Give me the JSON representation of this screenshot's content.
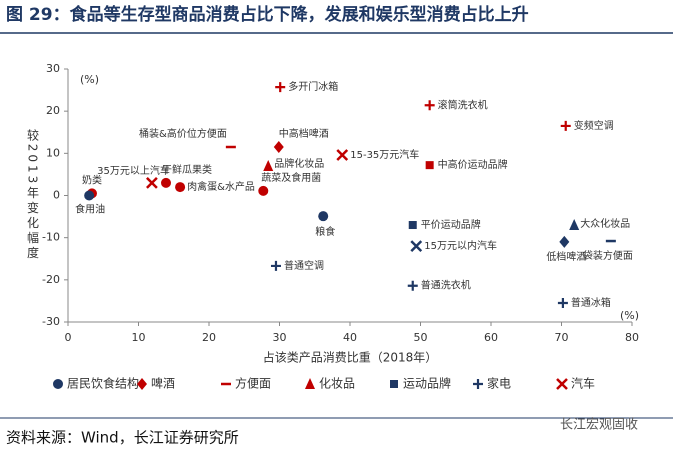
{
  "header": {
    "title": "图 29：食品等生存型商品消费占比下降，发展和娱乐型消费占比上升"
  },
  "chart_data": {
    "type": "scatter",
    "ylabel": "较2013年变化幅度",
    "xlabel": "占该类产品消费比重（2018年）",
    "yunit": "(%)",
    "xunit": "(%)",
    "xlim": [
      0,
      80
    ],
    "ylim": [
      -30,
      30
    ],
    "xticks": [
      0,
      10,
      20,
      30,
      40,
      50,
      60,
      70,
      80
    ],
    "yticks": [
      -30,
      -20,
      -10,
      0,
      10,
      20,
      30
    ],
    "grid": false,
    "series": [
      {
        "name": "居民饮食结构",
        "marker": "circle",
        "color": "#1f3864",
        "colors": [
          "#c00000",
          "#1f3864",
          "#c00000",
          "#c00000",
          "#c00000",
          "#1f3864"
        ],
        "labels": [
          "奶类",
          "食用油",
          "干鲜瓜果类",
          "肉禽蛋&水产品",
          "蔬菜及食用菌",
          "粮食"
        ],
        "x": [
          3.4,
          3,
          13.9,
          15.9,
          27.7,
          36.2
        ],
        "values": [
          0.5,
          0,
          3,
          2,
          1.1,
          -4.9
        ]
      },
      {
        "name": "啤酒",
        "marker": "diamond",
        "color": "#c00000",
        "colors": [
          "#c00000",
          "#1f3864"
        ],
        "labels": [
          "中高档啤酒",
          "低档啤酒"
        ],
        "x": [
          29.9,
          70.4
        ],
        "values": [
          11.5,
          -11
        ]
      },
      {
        "name": "方便面",
        "marker": "dash",
        "color": "#c00000",
        "colors": [
          "#c00000",
          "#1f3864"
        ],
        "labels": [
          "桶装&高价位方便面",
          "袋装方便面"
        ],
        "x": [
          23.1,
          77
        ],
        "values": [
          11.5,
          -10.8
        ]
      },
      {
        "name": "化妆品",
        "marker": "triangle",
        "color": "#c00000",
        "colors": [
          "#c00000",
          "#1f3864"
        ],
        "labels": [
          "品牌化妆品",
          "大众化妆品"
        ],
        "x": [
          28.4,
          71.8
        ],
        "values": [
          7,
          -7
        ]
      },
      {
        "name": "运动品牌",
        "marker": "square",
        "color": "#1f3864",
        "colors": [
          "#c00000",
          "#1f3864"
        ],
        "labels": [
          "中高价运动品牌",
          "平价运动品牌"
        ],
        "x": [
          51.3,
          48.9
        ],
        "values": [
          7.2,
          -7
        ]
      },
      {
        "name": "家电",
        "marker": "plus",
        "color": "#1f3864",
        "colors": [
          "#c00000",
          "#c00000",
          "#c00000",
          "#1f3864",
          "#1f3864",
          "#1f3864"
        ],
        "labels": [
          "多开门冰箱",
          "滚筒洗衣机",
          "变频空调",
          "普通空调",
          "普通洗衣机",
          "普通冰箱"
        ],
        "x": [
          30.1,
          51.3,
          70.6,
          29.5,
          48.9,
          70.2
        ],
        "values": [
          25.7,
          21.4,
          16.5,
          -16.7,
          -21.4,
          -25.5
        ]
      },
      {
        "name": "汽车",
        "marker": "x",
        "color": "#c00000",
        "colors": [
          "#c00000",
          "#c00000",
          "#1f3864"
        ],
        "labels": [
          "35万元以上汽车",
          "15-35万元汽车",
          "15万元以内汽车"
        ],
        "x": [
          11.9,
          38.9,
          49.4
        ],
        "values": [
          3,
          9.6,
          -12
        ]
      }
    ]
  },
  "footer": {
    "source": "资料来源：Wind，长江证券研究所",
    "watermark": "长江宏观固收"
  }
}
